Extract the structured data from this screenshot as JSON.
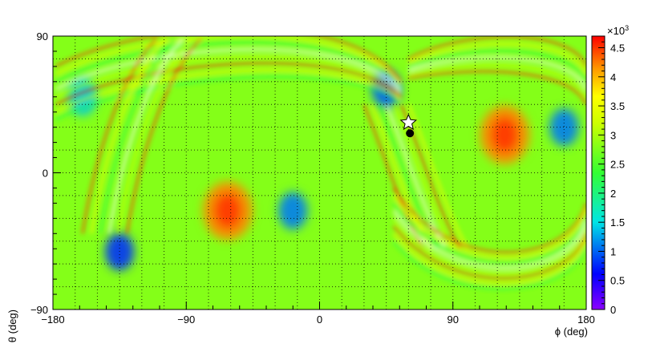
{
  "chart_data": {
    "type": "heatmap",
    "title": "",
    "xlabel": "ϕ (deg)",
    "ylabel": "θ (deg)",
    "xlim": [
      -180,
      180
    ],
    "ylim": [
      -90,
      90
    ],
    "x_ticks": [
      "−180",
      "−90",
      "0",
      "90",
      "180"
    ],
    "y_ticks": [
      "−90",
      "0",
      "90"
    ],
    "grid": true,
    "colorbar": {
      "range": [
        0,
        4.7
      ],
      "ticks": [
        "0",
        "0.5",
        "1",
        "1.5",
        "2",
        "2.5",
        "3",
        "3.5",
        "4",
        "4.5"
      ],
      "multiplier": "×10",
      "exponent": "3",
      "palette": "rainbow (violet → blue → cyan → green → yellow → orange → red)"
    },
    "background_level": 2.8,
    "features": [
      {
        "kind": "hot-spot",
        "phi": -62,
        "theta": -25,
        "level": 4.2
      },
      {
        "kind": "hot-spot",
        "phi": 125,
        "theta": 25,
        "level": 4.2
      },
      {
        "kind": "cold-spot",
        "phi": -18,
        "theta": -25,
        "level": 1.1
      },
      {
        "kind": "cold-spot",
        "phi": 165,
        "theta": 30,
        "level": 1.1
      },
      {
        "kind": "cold-spot",
        "phi": -135,
        "theta": -52,
        "level": 0.8
      },
      {
        "kind": "cold-spot",
        "phi": 45,
        "theta": 55,
        "level": 1.0
      },
      {
        "kind": "cold-spot",
        "phi": -160,
        "theta": 50,
        "level": 1.4
      },
      {
        "kind": "fringe-band",
        "phi": -145,
        "theta": 20
      },
      {
        "kind": "fringe-band",
        "phi": 45,
        "theta": 0
      },
      {
        "kind": "fringe-band",
        "phi": 120,
        "theta": -40
      }
    ],
    "markers": [
      {
        "kind": "star",
        "phi": 60,
        "theta": 33
      },
      {
        "kind": "dot",
        "phi": 61,
        "theta": 26
      }
    ]
  },
  "colors": {
    "violet": "#8b00ff",
    "blue": "#0000ff",
    "cyan": "#00e5e5",
    "green": "#33ff33",
    "yellow": "#ffff00",
    "orange": "#ff9900",
    "red": "#ff0000",
    "axis": "#000000",
    "background": "#ffffff"
  }
}
